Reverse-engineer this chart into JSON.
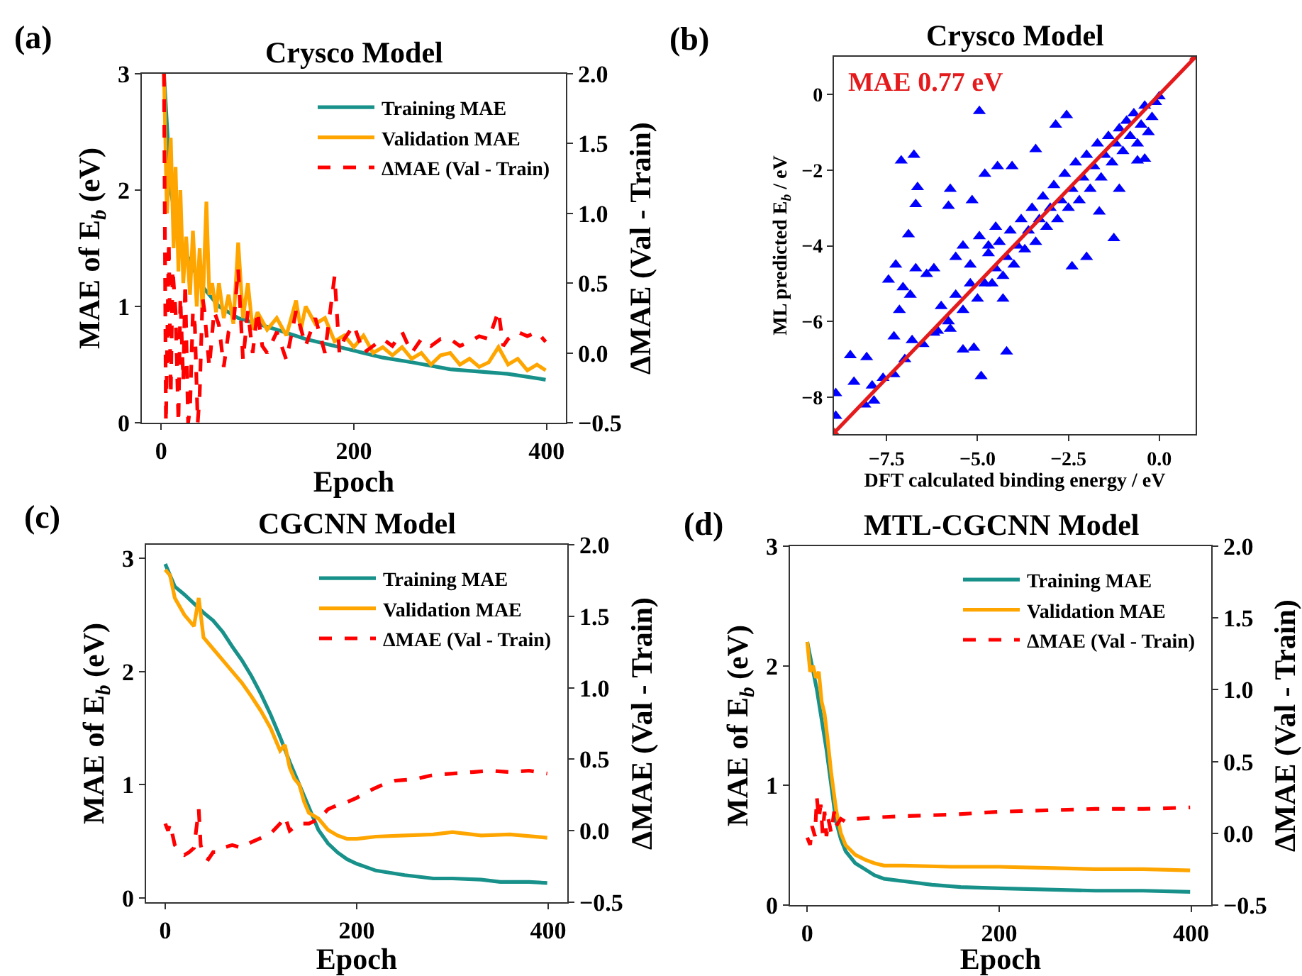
{
  "chart_data": [
    {
      "type": "line",
      "title": "Crysco Model",
      "xlabel": "Epoch",
      "ylabel": "MAE of E$_{b}$ (eV)",
      "y2label": "ΔMAE (Val - Train)",
      "annotations": [
        "(a)"
      ],
      "xlim": [
        -20,
        420
      ],
      "xticks": [
        0,
        200,
        400
      ],
      "ylim": [
        0,
        3
      ],
      "yticks": [
        0,
        1,
        2,
        3
      ],
      "y2lim": [
        -0.5,
        2.0
      ],
      "y2ticks": [
        {
          "value": -0.5,
          "label": "−0.5"
        },
        {
          "value": 0,
          "label": "0.0"
        },
        {
          "value": 0.5,
          "label": "0.5"
        },
        {
          "value": 1,
          "label": "1.0"
        },
        {
          "value": 1.5,
          "label": "1.5"
        },
        {
          "value": 2,
          "label": "2.0"
        }
      ],
      "legend": "top right",
      "marker": "none",
      "series": [
        {
          "name": "Training MAE",
          "color": "#17918a",
          "x": [
            3,
            10,
            20,
            30,
            40,
            50,
            60,
            80,
            100,
            120,
            150,
            180,
            200,
            230,
            260,
            300,
            330,
            360,
            399
          ],
          "values": [
            3.0,
            2.0,
            1.5,
            1.4,
            1.2,
            1.1,
            1.0,
            0.9,
            0.85,
            0.8,
            0.72,
            0.66,
            0.62,
            0.56,
            0.52,
            0.46,
            0.44,
            0.42,
            0.37
          ]
        },
        {
          "name": "Validation MAE",
          "color": "#ffa500",
          "x": [
            3,
            6,
            10,
            13,
            15,
            18,
            20,
            23,
            26,
            30,
            33,
            37,
            40,
            43,
            47,
            50,
            53,
            57,
            60,
            65,
            70,
            75,
            80,
            85,
            90,
            95,
            100,
            110,
            120,
            130,
            140,
            145,
            150,
            160,
            170,
            180,
            190,
            200,
            210,
            220,
            230,
            240,
            250,
            260,
            270,
            280,
            290,
            300,
            310,
            320,
            330,
            340,
            350,
            360,
            370,
            380,
            390,
            399
          ],
          "values": [
            3.0,
            1.8,
            2.45,
            1.5,
            2.2,
            1.3,
            2.0,
            1.2,
            1.6,
            1.1,
            1.65,
            1.0,
            1.5,
            0.95,
            1.9,
            1.1,
            1.2,
            0.95,
            1.2,
            0.9,
            1.1,
            0.85,
            1.55,
            0.9,
            1.2,
            0.8,
            0.95,
            0.8,
            0.9,
            0.75,
            1.05,
            0.8,
            1.0,
            0.85,
            0.9,
            0.7,
            0.75,
            0.65,
            0.75,
            0.6,
            0.65,
            0.58,
            0.65,
            0.55,
            0.6,
            0.5,
            0.58,
            0.6,
            0.5,
            0.55,
            0.48,
            0.52,
            0.65,
            0.5,
            0.55,
            0.45,
            0.5,
            0.45
          ]
        },
        {
          "name": "ΔMAE (Val - Train)",
          "color": "#ff0000",
          "axis": "y2",
          "line_style": "dashed",
          "x": [
            3,
            5,
            8,
            10,
            12,
            15,
            18,
            20,
            23,
            25,
            28,
            30,
            33,
            35,
            38,
            40,
            43,
            45,
            50,
            55,
            60,
            65,
            70,
            75,
            80,
            85,
            90,
            95,
            100,
            105,
            110,
            120,
            130,
            140,
            150,
            160,
            170,
            180,
            185,
            190,
            200,
            210,
            220,
            230,
            240,
            250,
            260,
            270,
            280,
            290,
            300,
            310,
            320,
            330,
            340,
            350,
            355,
            360,
            370,
            380,
            390,
            399
          ],
          "values": [
            2.0,
            -0.5,
            0.8,
            -0.3,
            0.6,
            0.3,
            -0.5,
            0.4,
            -0.2,
            0.5,
            -0.5,
            -0.4,
            0.3,
            0.2,
            -0.5,
            -0.3,
            0.4,
            0.3,
            -0.1,
            0.3,
            0.2,
            -0.1,
            0.15,
            0.2,
            0.6,
            -0.05,
            0.3,
            0.0,
            0.3,
            0.05,
            0.0,
            0.15,
            -0.05,
            0.3,
            0.05,
            0.25,
            0.0,
            0.55,
            0.0,
            0.1,
            0.2,
            0.0,
            0.05,
            0.1,
            0.05,
            0.15,
            0.0,
            0.1,
            0.05,
            0.1,
            0.1,
            0.05,
            0.08,
            0.12,
            0.1,
            0.3,
            0.05,
            0.1,
            0.15,
            0.12,
            0.15,
            0.08
          ]
        }
      ]
    },
    {
      "type": "scatter",
      "title": "Crysco Model",
      "xlabel": "DFT calculated binding energy / eV",
      "ylabel": "ML predicted E$_{b}$ / eV",
      "annotations": [
        "(b)",
        "MAE 0.77 eV"
      ],
      "xlim": [
        -8.95,
        1.0
      ],
      "xticks": [
        {
          "value": -7.5,
          "label": "−7.5"
        },
        {
          "value": -5,
          "label": "−5.0"
        },
        {
          "value": -2.5,
          "label": "−2.5"
        },
        {
          "value": 0,
          "label": "0.0"
        }
      ],
      "ylim": [
        -8.98,
        1.0
      ],
      "yticks": [
        {
          "value": -8,
          "label": "−8"
        },
        {
          "value": -6,
          "label": "−6"
        },
        {
          "value": -4,
          "label": "−4"
        },
        {
          "value": -2,
          "label": "−2"
        },
        0
      ],
      "marker": "triangle",
      "series": [
        {
          "color": "#0000ff",
          "x": [
            -4.95,
            -6.75,
            -7.1,
            -6.65,
            -6.7,
            -5.75,
            -5.8,
            -5.15,
            -6.9,
            -7.25,
            -7.45,
            -6.7,
            -7.05,
            -6.85,
            -7.15,
            -7.3,
            -8.5,
            -8.05,
            -8.4,
            -7.9,
            -8.1,
            -7.85,
            -8.9,
            -8.9,
            -4.9,
            -4.2,
            -5.1,
            -5.4,
            -5.75,
            -6.1,
            -2.4,
            -2.0,
            -1.25,
            -2.85,
            -2.55,
            -3.4,
            -4.45,
            -4.05,
            -4.8,
            -0.6,
            -0.4,
            -1.1,
            -1.65,
            -6.4,
            -6.2,
            -4.3,
            -4.5,
            -4.7,
            -4.95,
            -5.4,
            -5.6,
            -5.2,
            0.0,
            -0.1,
            -0.2,
            -0.3,
            -0.4,
            -0.5,
            -0.6,
            -0.7,
            -0.8,
            -0.9,
            -1.0,
            -1.1,
            -1.2,
            -1.3,
            -1.4,
            -1.5,
            -1.6,
            -1.7,
            -1.8,
            -1.9,
            -2.0,
            -2.1,
            -2.2,
            -2.3,
            -2.4,
            -2.5,
            -2.6,
            -2.7,
            -2.8,
            -2.9,
            -3.0,
            -3.1,
            -3.2,
            -3.3,
            -3.4,
            -3.5,
            -3.6,
            -3.7,
            -3.8,
            -3.9,
            -4.0,
            -4.1,
            -4.2,
            -4.3,
            -4.4,
            -4.5,
            -4.6,
            -4.7,
            -4.8,
            -5.0,
            -5.2,
            -5.4,
            -5.6,
            -5.8,
            -6.0,
            -6.2,
            -6.5,
            -6.8,
            -7.0,
            -7.3,
            -7.6
          ],
          "values": [
            -0.44,
            -1.6,
            -1.75,
            -2.45,
            -2.9,
            -2.5,
            -2.95,
            -2.8,
            -3.7,
            -4.5,
            -4.9,
            -4.6,
            -5.1,
            -5.3,
            -5.7,
            -6.4,
            -6.9,
            -6.95,
            -7.6,
            -7.7,
            -8.2,
            -8.1,
            -7.9,
            -8.5,
            -7.45,
            -6.8,
            -6.7,
            -6.75,
            -6.2,
            -6.25,
            -4.55,
            -4.3,
            -3.8,
            -0.8,
            -0.55,
            -1.45,
            -1.9,
            -1.9,
            -2.1,
            -1.75,
            -1.7,
            -2.5,
            -3.1,
            -4.75,
            -4.6,
            -5.4,
            -3.5,
            -4.0,
            -3.75,
            -4.0,
            -4.3,
            -4.5,
            -0.05,
            -0.2,
            -0.6,
            -1.0,
            -0.3,
            -0.8,
            -1.3,
            -0.5,
            -1.1,
            -0.7,
            -1.5,
            -0.9,
            -1.3,
            -1.8,
            -1.1,
            -1.6,
            -2.2,
            -1.3,
            -1.9,
            -2.5,
            -1.6,
            -2.2,
            -2.8,
            -1.8,
            -2.5,
            -3.0,
            -2.1,
            -2.8,
            -3.3,
            -2.4,
            -3.0,
            -3.5,
            -2.7,
            -3.3,
            -3.9,
            -3.0,
            -3.6,
            -4.1,
            -3.3,
            -4.0,
            -4.5,
            -3.6,
            -4.3,
            -4.8,
            -3.9,
            -4.6,
            -5.0,
            -4.2,
            -5.0,
            -5.4,
            -5.0,
            -5.7,
            -5.3,
            -6.0,
            -5.6,
            -6.3,
            -6.6,
            -6.5,
            -7.0,
            -7.4,
            -7.5
          ]
        },
        {
          "type": "line",
          "color": "#e41a1c",
          "x": [
            -8.95,
            1.0
          ],
          "values": [
            -8.95,
            1.0
          ]
        }
      ]
    },
    {
      "type": "line",
      "title": "CGCNN Model",
      "xlabel": "Epoch",
      "ylabel": "MAE of E$_{b}$ (eV)",
      "y2label": "ΔMAE (Val - Train)",
      "annotations": [
        "(c)"
      ],
      "xlim": [
        -20,
        420
      ],
      "xticks": [
        0,
        200,
        400
      ],
      "ylim": [
        -0.04,
        3.12
      ],
      "yticks": [
        0,
        1,
        2,
        3
      ],
      "y2lim": [
        -0.5,
        2.0
      ],
      "y2ticks": [
        {
          "value": -0.5,
          "label": "−0.5"
        },
        {
          "value": 0,
          "label": "0.0"
        },
        {
          "value": 0.5,
          "label": "0.5"
        },
        {
          "value": 1,
          "label": "1.0"
        },
        {
          "value": 1.5,
          "label": "1.5"
        },
        {
          "value": 2,
          "label": "2.0"
        }
      ],
      "legend": "top right",
      "marker": "none",
      "series": [
        {
          "name": "Training MAE",
          "color": "#17918a",
          "x": [
            0,
            10,
            20,
            30,
            40,
            50,
            60,
            70,
            80,
            90,
            100,
            110,
            120,
            130,
            140,
            150,
            160,
            170,
            180,
            190,
            200,
            220,
            250,
            280,
            300,
            330,
            350,
            380,
            399
          ],
          "values": [
            2.95,
            2.75,
            2.68,
            2.6,
            2.52,
            2.45,
            2.35,
            2.22,
            2.1,
            1.96,
            1.8,
            1.62,
            1.42,
            1.2,
            1.0,
            0.8,
            0.6,
            0.48,
            0.4,
            0.34,
            0.3,
            0.24,
            0.2,
            0.17,
            0.17,
            0.16,
            0.14,
            0.14,
            0.13
          ]
        },
        {
          "name": "Validation MAE",
          "color": "#ffa500",
          "x": [
            0,
            5,
            10,
            20,
            30,
            35,
            40,
            50,
            60,
            70,
            80,
            90,
            100,
            110,
            120,
            125,
            130,
            135,
            140,
            145,
            150,
            160,
            170,
            180,
            190,
            200,
            220,
            250,
            280,
            300,
            330,
            360,
            399
          ],
          "values": [
            2.9,
            2.85,
            2.65,
            2.5,
            2.4,
            2.65,
            2.3,
            2.2,
            2.1,
            2.0,
            1.9,
            1.78,
            1.65,
            1.5,
            1.3,
            1.35,
            1.15,
            1.05,
            1.0,
            0.85,
            0.75,
            0.7,
            0.6,
            0.55,
            0.52,
            0.52,
            0.54,
            0.55,
            0.56,
            0.58,
            0.55,
            0.56,
            0.53
          ]
        },
        {
          "name": "ΔMAE (Val - Train)",
          "color": "#ff0000",
          "axis": "y2",
          "line_style": "dashed",
          "x": [
            0,
            3,
            5,
            10,
            15,
            20,
            25,
            30,
            35,
            37,
            40,
            45,
            50,
            55,
            60,
            70,
            80,
            90,
            100,
            110,
            120,
            125,
            130,
            140,
            150,
            160,
            170,
            180,
            190,
            200,
            210,
            220,
            230,
            240,
            260,
            280,
            300,
            320,
            340,
            360,
            380,
            399
          ],
          "values": [
            0.05,
            0.0,
            0.05,
            -0.1,
            -0.15,
            -0.17,
            -0.15,
            -0.12,
            0.15,
            -0.1,
            -0.18,
            -0.2,
            -0.15,
            -0.15,
            -0.12,
            -0.1,
            -0.12,
            -0.08,
            -0.05,
            -0.02,
            0.05,
            0.1,
            0.0,
            0.05,
            0.05,
            0.08,
            0.15,
            0.18,
            0.2,
            0.23,
            0.27,
            0.3,
            0.33,
            0.35,
            0.36,
            0.39,
            0.4,
            0.41,
            0.42,
            0.41,
            0.42,
            0.4
          ]
        }
      ]
    },
    {
      "type": "line",
      "title": "MTL-CGCNN Model",
      "xlabel": "Epoch",
      "ylabel": "MAE of E$_{b}$ (eV)",
      "y2label": "ΔMAE (Val - Train)",
      "annotations": [
        "(d)"
      ],
      "xlim": [
        -18,
        421
      ],
      "xticks": [
        0,
        200,
        400
      ],
      "ylim": [
        0,
        3
      ],
      "yticks": [
        0,
        1,
        2,
        3
      ],
      "y2lim": [
        -0.5,
        2.0
      ],
      "y2ticks": [
        {
          "value": -0.5,
          "label": "−0.5"
        },
        {
          "value": 0,
          "label": "0.0"
        },
        {
          "value": 0.5,
          "label": "0.5"
        },
        {
          "value": 1,
          "label": "1.0"
        },
        {
          "value": 1.5,
          "label": "1.5"
        },
        {
          "value": 2,
          "label": "2.0"
        }
      ],
      "legend": "top right",
      "marker": "none",
      "series": [
        {
          "name": "Training MAE",
          "color": "#17918a",
          "x": [
            0,
            5,
            10,
            15,
            20,
            25,
            30,
            35,
            40,
            50,
            60,
            70,
            80,
            100,
            130,
            160,
            200,
            250,
            300,
            350,
            399
          ],
          "values": [
            2.2,
            2.0,
            1.8,
            1.55,
            1.3,
            1.0,
            0.7,
            0.55,
            0.45,
            0.35,
            0.3,
            0.25,
            0.22,
            0.2,
            0.17,
            0.15,
            0.14,
            0.13,
            0.12,
            0.12,
            0.11
          ]
        },
        {
          "name": "Validation MAE",
          "color": "#ffa500",
          "x": [
            0,
            3,
            6,
            9,
            12,
            15,
            18,
            21,
            25,
            30,
            35,
            40,
            50,
            60,
            70,
            80,
            100,
            150,
            200,
            250,
            300,
            350,
            399
          ],
          "values": [
            2.2,
            1.95,
            2.0,
            1.9,
            1.95,
            1.7,
            1.6,
            1.4,
            1.1,
            0.8,
            0.6,
            0.5,
            0.42,
            0.38,
            0.35,
            0.33,
            0.33,
            0.32,
            0.32,
            0.31,
            0.3,
            0.3,
            0.29
          ]
        },
        {
          "name": "ΔMAE (Val - Train)",
          "color": "#ff0000",
          "axis": "y2",
          "line_style": "dashed",
          "x": [
            0,
            3,
            5,
            8,
            10,
            12,
            14,
            16,
            18,
            20,
            22,
            25,
            28,
            30,
            35,
            40,
            50,
            70,
            100,
            150,
            200,
            250,
            300,
            350,
            399
          ],
          "values": [
            -0.03,
            -0.08,
            0.05,
            -0.02,
            0.25,
            0.1,
            0.2,
            0.0,
            0.15,
            -0.02,
            0.1,
            0.0,
            0.15,
            0.05,
            0.1,
            0.08,
            0.1,
            0.11,
            0.12,
            0.13,
            0.15,
            0.16,
            0.17,
            0.17,
            0.18
          ]
        }
      ]
    }
  ]
}
